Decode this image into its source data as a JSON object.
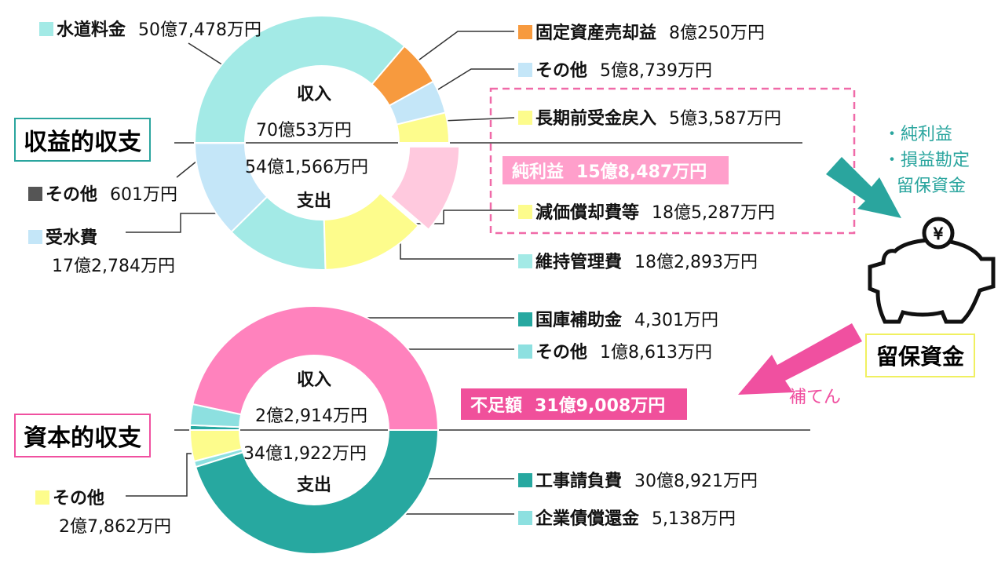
{
  "revenue": {
    "title": "収益的収支",
    "income_label": "収入",
    "income_total": "70億53万円",
    "expense_label": "支出",
    "expense_total": "54億1,566万円",
    "income": [
      {
        "name": "水道料金",
        "amount": "50億7,478万円",
        "value": 507478,
        "color": "#a3eae6"
      },
      {
        "name": "固定資産売却益",
        "amount": "8億250万円",
        "value": 80250,
        "color": "#f79a3e"
      },
      {
        "name": "その他",
        "amount": "5億8,739万円",
        "value": 58739,
        "color": "#c4e6f8"
      },
      {
        "name": "長期前受金戻入",
        "amount": "5億3,587万円",
        "value": 53587,
        "color": "#fdfc8c"
      }
    ],
    "expense": [
      {
        "name": "その他",
        "amount": "601万円",
        "value": 601,
        "color": "#555555"
      },
      {
        "name": "受水費",
        "amount": "17億2,784万円",
        "value": 172784,
        "color": "#c4e6f8"
      },
      {
        "name": "維持管理費",
        "amount": "18億2,893万円",
        "value": 182893,
        "color": "#a3eae6"
      },
      {
        "name": "減価償却費等",
        "amount": "18億5,287万円",
        "value": 185287,
        "color": "#fdfc8c"
      }
    ],
    "surplus": {
      "name": "純利益",
      "amount": "15億8,487万円",
      "value": 158487,
      "color": "#ffc9de"
    }
  },
  "capital": {
    "title": "資本的収支",
    "income_label": "収入",
    "income_total": "2億2,914万円",
    "expense_label": "支出",
    "expense_total": "34億1,922万円",
    "income": [
      {
        "name": "国庫補助金",
        "amount": "4,301万円",
        "value": 4301,
        "color": "#27a8a0"
      },
      {
        "name": "その他",
        "amount": "1億8,613万円",
        "value": 18613,
        "color": "#8de0e0"
      }
    ],
    "expense": [
      {
        "name": "その他",
        "amount": "2億7,862万円",
        "value": 27862,
        "color": "#fdfc8c"
      },
      {
        "name": "企業債償還金",
        "amount": "5,138万円",
        "value": 5138,
        "color": "#8de0e0"
      },
      {
        "name": "工事請負費",
        "amount": "30億8,921万円",
        "value": 308921,
        "color": "#27a8a0"
      }
    ],
    "shortfall": {
      "name": "不足額",
      "amount": "31億9,008万円",
      "value": 319008,
      "color": "#ff82bd"
    }
  },
  "reserve": {
    "title": "留保資金",
    "sources": [
      "・純利益",
      "・損益勘定",
      "留保資金"
    ],
    "fill": "補てん"
  }
}
